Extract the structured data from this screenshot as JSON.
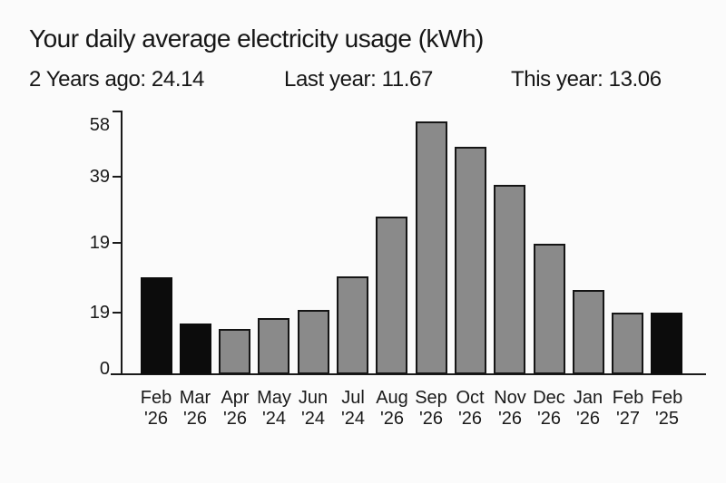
{
  "page": {
    "background_color": "#fbfbfb",
    "text_color": "#161616"
  },
  "header": {
    "title": "Your daily average electricity usage (kWh)"
  },
  "stats": [
    {
      "label": "2 Years ago",
      "value": "24.14",
      "text": "2 Years ago: 24.14"
    },
    {
      "label": "Last year",
      "value": "11.67",
      "text": "Last year: 11.67"
    },
    {
      "label": "This year",
      "value": "13.06",
      "text": "This year: 13.06"
    }
  ],
  "chart_data": {
    "type": "bar",
    "title": "Your daily average electricity usage (kWh)",
    "xlabel": "",
    "ylabel": "",
    "ylim": [
      0,
      58
    ],
    "grid": false,
    "legend": null,
    "y_tick_labels": [
      "58",
      "39",
      "19",
      "19",
      "0"
    ],
    "categories": [
      "Feb '26",
      "Mar '26",
      "Apr '26",
      "May '24",
      "Jun '24",
      "Jul '24",
      "Aug '26",
      "Sep '26",
      "Oct '26",
      "Nov '26",
      "Dec '26",
      "Jan '26",
      "Feb '27",
      "Feb '25"
    ],
    "x_labels": [
      {
        "month": "Feb",
        "year": "'26"
      },
      {
        "month": "Mar",
        "year": "'26"
      },
      {
        "month": "Apr",
        "year": "'26"
      },
      {
        "month": "May",
        "year": "'24"
      },
      {
        "month": "Jun",
        "year": "'24"
      },
      {
        "month": "Jul",
        "year": "'24"
      },
      {
        "month": "Aug",
        "year": "'26"
      },
      {
        "month": "Sep",
        "year": "'26"
      },
      {
        "month": "Oct",
        "year": "'26"
      },
      {
        "month": "Nov",
        "year": "'26"
      },
      {
        "month": "Dec",
        "year": "'26"
      },
      {
        "month": "Jan",
        "year": "'26"
      },
      {
        "month": "Feb",
        "year": "'27"
      },
      {
        "month": "Feb",
        "year": "'25"
      }
    ],
    "values": [
      21.4,
      11.2,
      10.0,
      12.4,
      14.2,
      21.6,
      34.8,
      55.8,
      50.2,
      41.8,
      28.8,
      18.6,
      13.6,
      13.6
    ],
    "highlight_indices": [
      0,
      1,
      13
    ],
    "bar_color": "#8a8a8a",
    "highlight_color": "#0c0c0c",
    "bar_border_color": "#151515",
    "axis_color": "#1a1a1a"
  }
}
